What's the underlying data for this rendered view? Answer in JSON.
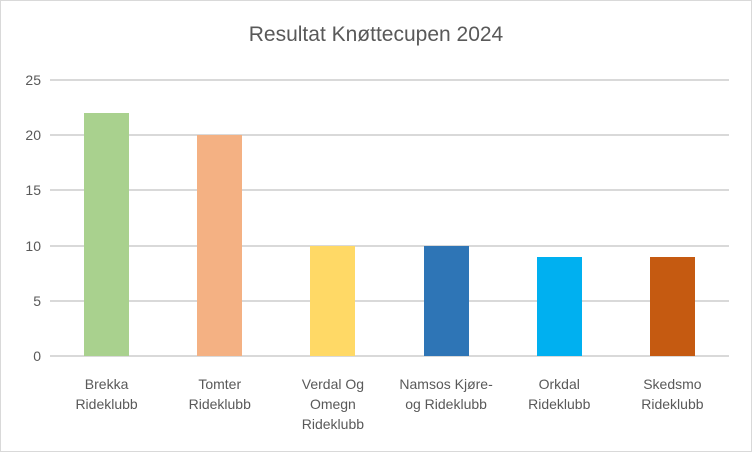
{
  "chart_data": {
    "type": "bar",
    "title": "Resultat Knøttecupen 2024",
    "categories": [
      "Brekka\nRideklubb",
      "Tomter\nRideklubb",
      "Verdal Og\nOmegn\nRideklubb",
      "Namsos Kjøre-\nog Rideklubb",
      "Orkdal\nRideklubb",
      "Skedsmo\nRideklubb"
    ],
    "values": [
      22,
      20,
      10,
      10,
      9,
      9
    ],
    "bar_colors": [
      "#A9D18E",
      "#F4B183",
      "#FFD966",
      "#2E75B6",
      "#00B0F0",
      "#C55A11"
    ],
    "xlabel": "",
    "ylabel": "",
    "ylim": [
      0,
      25
    ],
    "yticks": [
      0,
      5,
      10,
      15,
      20,
      25
    ],
    "grid": true,
    "legend": false,
    "text_color": "#595959",
    "gridline_color": "#D9D9D9",
    "border_color": "#D9D9D9",
    "background_color": "#FFFFFF"
  }
}
